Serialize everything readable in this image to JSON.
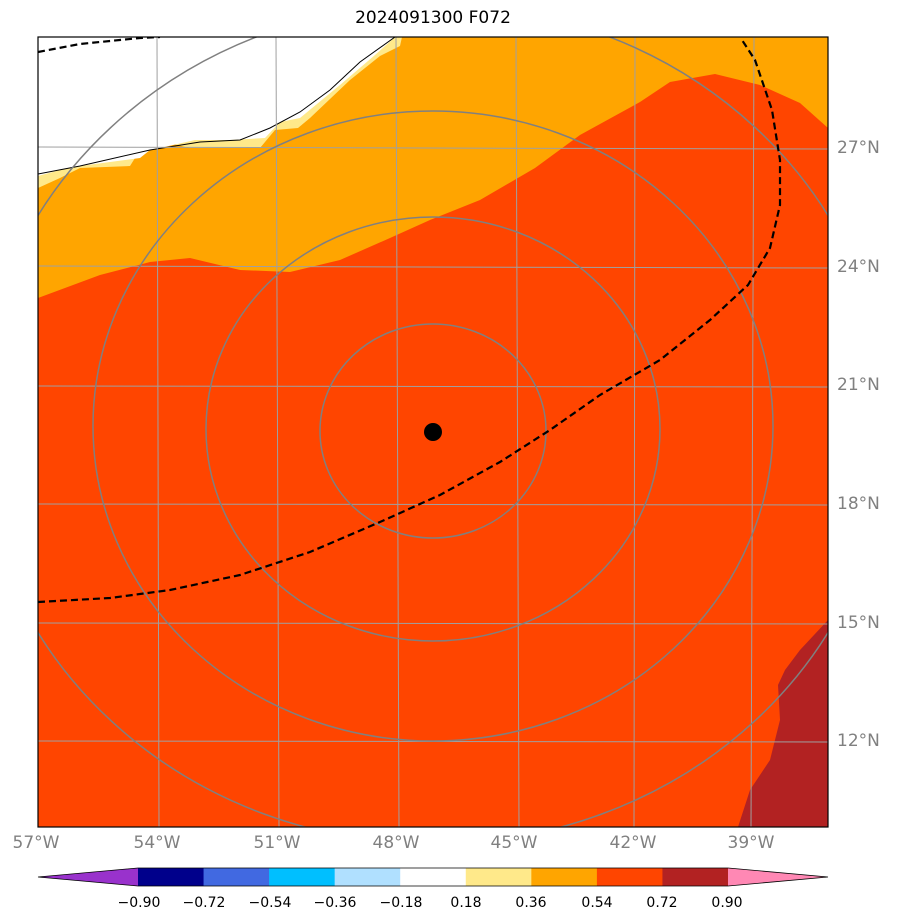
{
  "title": "2024091300 F072",
  "map": {
    "longitudes": [
      "57°W",
      "54°W",
      "51°W",
      "48°W",
      "45°W",
      "42°W",
      "39°W"
    ],
    "latitudes": [
      "27°N",
      "24°N",
      "21°N",
      "18°N",
      "15°N",
      "12°N"
    ],
    "center_marker": {
      "lon": -47.0,
      "lat": 19.8,
      "color": "#000000"
    },
    "range_rings": 4
  },
  "colorbar": {
    "levels": [
      "−0.90",
      "−0.72",
      "−0.54",
      "−0.36",
      "−0.18",
      "0.18",
      "0.36",
      "0.54",
      "0.72",
      "0.90"
    ],
    "colors": [
      "#9932cc",
      "#00008b",
      "#4169e1",
      "#00bfff",
      "#b0e0ff",
      "#ffffff",
      "#ffe98a",
      "#ffa500",
      "#ff4500",
      "#b22222",
      "#ff88b4"
    ]
  }
}
